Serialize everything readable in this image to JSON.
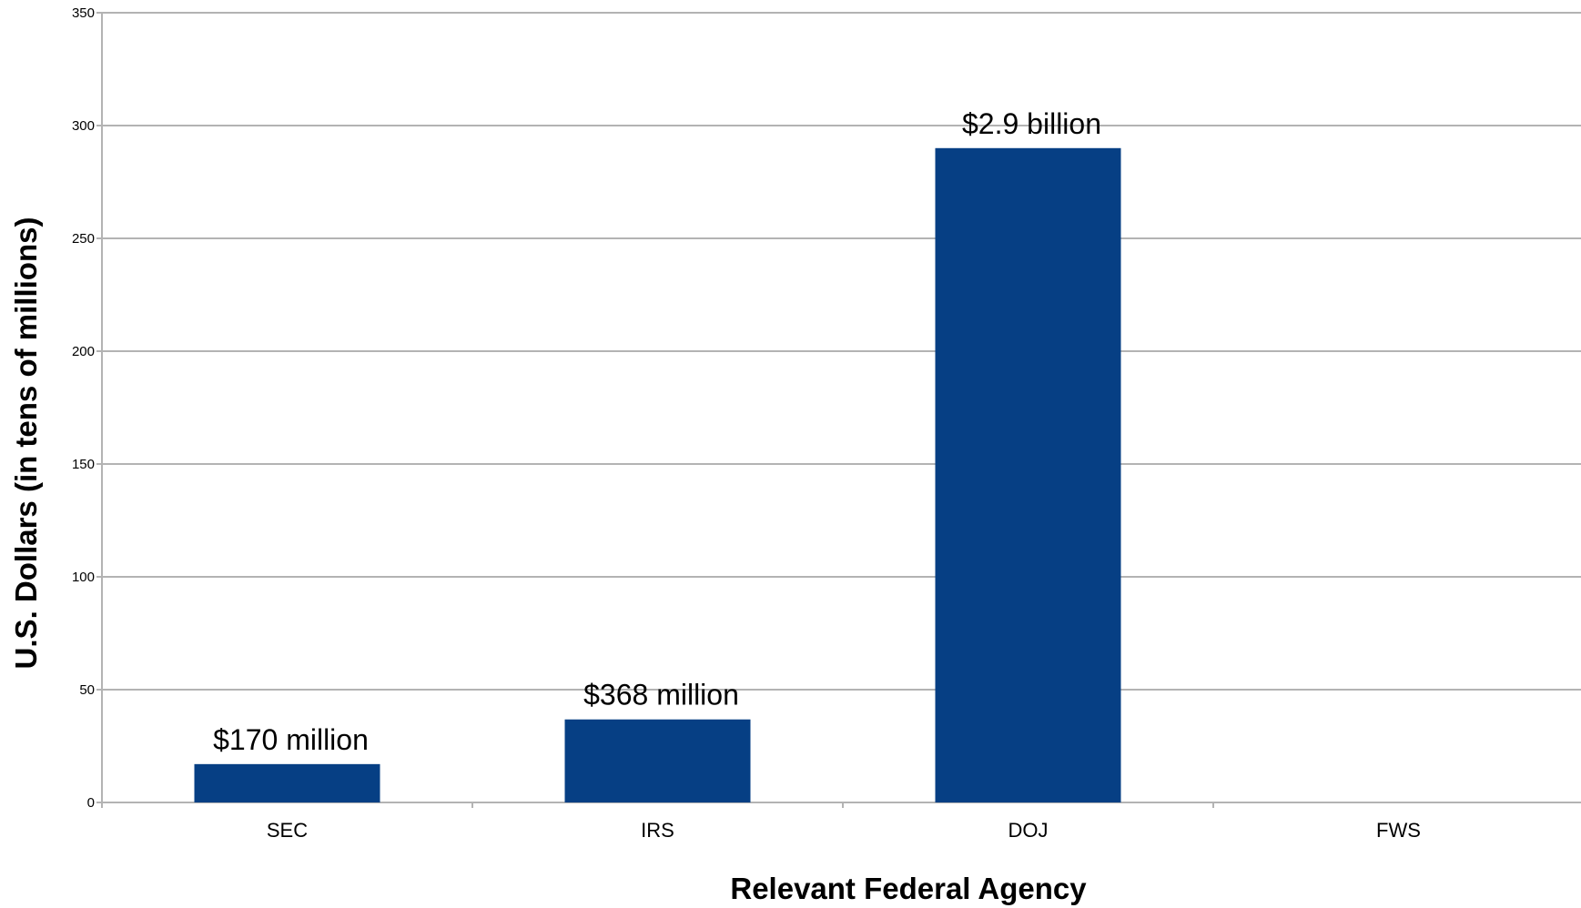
{
  "chart_data": {
    "type": "bar",
    "categories": [
      "SEC",
      "IRS",
      "DOJ",
      "FWS"
    ],
    "values": [
      17,
      36.8,
      290,
      0
    ],
    "data_labels": [
      "$170 million",
      "$368 million",
      "$2.9 billion",
      ""
    ],
    "title": "",
    "xlabel": "Relevant Federal Agency",
    "ylabel": "U.S. Dollars (in tens of millions)",
    "ylim": [
      0,
      350
    ],
    "yticks": [
      0,
      50,
      100,
      150,
      200,
      250,
      300,
      350
    ],
    "grid": true,
    "legend": "none",
    "bar_color": "#063f84"
  }
}
